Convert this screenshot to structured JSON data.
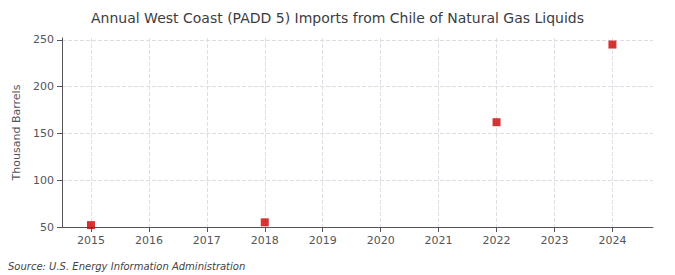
{
  "chart_data": {
    "type": "scatter",
    "title": "Annual West Coast (PADD 5) Imports from Chile of Natural Gas Liquids",
    "ylabel": "Thousand Barrels",
    "source": "Source: U.S. Energy Information Administration",
    "x": [
      2015,
      2018,
      2022,
      2024
    ],
    "values": [
      52,
      55,
      162,
      245
    ],
    "color": "#cc0000",
    "marker": "square",
    "xlim": [
      2014.5,
      2024.7
    ],
    "ylim": [
      50,
      252
    ],
    "xticks": [
      2015,
      2016,
      2017,
      2018,
      2019,
      2020,
      2021,
      2022,
      2023,
      2024
    ],
    "yticks": [
      50,
      100,
      150,
      200,
      250
    ],
    "grid": true
  }
}
